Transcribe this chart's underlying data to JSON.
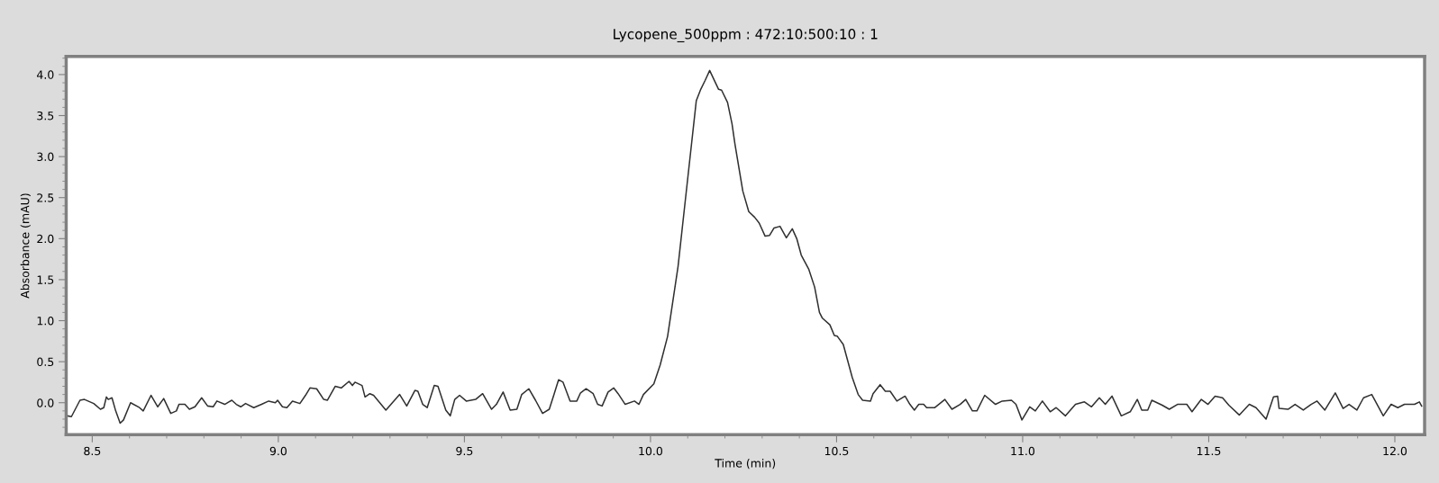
{
  "chart_data": {
    "type": "line",
    "title": "Lycopene_500ppm : 472:10:500:10 : 1",
    "xlabel": "Time (min)",
    "ylabel": "Absorbance (mAU)",
    "xlim": [
      8.43,
      12.08
    ],
    "ylim": [
      -0.39,
      4.22
    ],
    "xticks": [
      8.5,
      {
        "value": 9,
        "label": "9.0"
      },
      9.5,
      {
        "value": 10,
        "label": "10.0"
      },
      10.5,
      {
        "value": 11,
        "label": "11.0"
      },
      11.5,
      {
        "value": 12,
        "label": "12.0"
      }
    ],
    "yticks": [
      {
        "value": 0,
        "label": "0.0"
      },
      0.5,
      {
        "value": 1,
        "label": "1.0"
      },
      1.5,
      {
        "value": 2,
        "label": "2.0"
      },
      2.5,
      {
        "value": 3,
        "label": "3.0"
      },
      3.5,
      {
        "value": 4,
        "label": "4.0"
      }
    ],
    "grid": false,
    "legend": false,
    "marker": "none",
    "line_style": "solid",
    "series": [
      {
        "color": "#303030",
        "x": [
          8.433,
          8.444,
          8.467,
          8.479,
          8.504,
          8.522,
          8.531,
          8.538,
          8.543,
          8.553,
          8.563,
          8.575,
          8.584,
          8.603,
          8.627,
          8.637,
          8.658,
          8.676,
          8.692,
          8.711,
          8.726,
          8.733,
          8.749,
          8.761,
          8.776,
          8.794,
          8.81,
          8.825,
          8.835,
          8.856,
          8.875,
          8.887,
          8.899,
          8.912,
          8.934,
          8.955,
          8.974,
          8.992,
          8.998,
          9.011,
          9.023,
          9.038,
          9.058,
          9.073,
          9.085,
          9.103,
          9.122,
          9.132,
          9.153,
          9.169,
          9.19,
          9.199,
          9.206,
          9.225,
          9.233,
          9.246,
          9.256,
          9.289,
          9.326,
          9.345,
          9.367,
          9.375,
          9.388,
          9.4,
          9.419,
          9.429,
          9.45,
          9.462,
          9.474,
          9.487,
          9.505,
          9.53,
          9.549,
          9.573,
          9.586,
          9.604,
          9.623,
          9.641,
          9.654,
          9.673,
          9.691,
          9.71,
          9.728,
          9.74,
          9.753,
          9.765,
          9.784,
          9.802,
          9.812,
          9.827,
          9.846,
          9.858,
          9.87,
          9.886,
          9.901,
          9.913,
          9.932,
          9.957,
          9.969,
          9.981,
          10.009,
          10.026,
          10.046,
          10.074,
          10.098,
          10.123,
          10.135,
          10.147,
          10.159,
          10.183,
          10.191,
          10.207,
          10.219,
          10.227,
          10.248,
          10.264,
          10.28,
          10.292,
          10.308,
          10.32,
          10.332,
          10.348,
          10.365,
          10.381,
          10.393,
          10.405,
          10.425,
          10.441,
          10.454,
          10.462,
          10.482,
          10.494,
          10.502,
          10.518,
          10.542,
          10.558,
          10.57,
          10.591,
          10.598,
          10.617,
          10.631,
          10.644,
          10.662,
          10.684,
          10.697,
          10.709,
          10.721,
          10.734,
          10.742,
          10.764,
          10.791,
          10.81,
          10.832,
          10.847,
          10.865,
          10.877,
          10.898,
          10.927,
          10.945,
          10.97,
          10.982,
          10.998,
          11.019,
          11.034,
          11.053,
          11.074,
          11.09,
          11.115,
          11.142,
          11.166,
          11.185,
          11.206,
          11.222,
          11.24,
          11.265,
          11.289,
          11.308,
          11.32,
          11.336,
          11.347,
          11.375,
          11.394,
          11.416,
          11.441,
          11.455,
          11.48,
          11.498,
          11.517,
          11.537,
          11.554,
          11.582,
          11.609,
          11.627,
          11.654,
          11.674,
          11.685,
          11.689,
          11.713,
          11.732,
          11.754,
          11.775,
          11.791,
          11.812,
          11.84,
          11.861,
          11.877,
          11.898,
          11.916,
          11.938,
          11.969,
          11.99,
          12.008,
          12.026,
          12.053,
          12.066,
          12.072
        ],
        "values": [
          -0.16,
          -0.17,
          0.03,
          0.04,
          -0.01,
          -0.08,
          -0.06,
          0.07,
          0.04,
          0.06,
          -0.1,
          -0.25,
          -0.21,
          0.0,
          -0.06,
          -0.1,
          0.09,
          -0.05,
          0.05,
          -0.13,
          -0.1,
          -0.02,
          -0.02,
          -0.08,
          -0.05,
          0.06,
          -0.04,
          -0.05,
          0.02,
          -0.02,
          0.03,
          -0.02,
          -0.05,
          -0.01,
          -0.06,
          -0.02,
          0.02,
          0.0,
          0.03,
          -0.05,
          -0.06,
          0.02,
          -0.01,
          0.09,
          0.18,
          0.17,
          0.04,
          0.03,
          0.2,
          0.18,
          0.26,
          0.21,
          0.25,
          0.21,
          0.07,
          0.11,
          0.09,
          -0.09,
          0.1,
          -0.04,
          0.15,
          0.14,
          -0.02,
          -0.06,
          0.21,
          0.2,
          -0.09,
          -0.16,
          0.04,
          0.09,
          0.02,
          0.04,
          0.11,
          -0.08,
          -0.02,
          0.13,
          -0.09,
          -0.08,
          0.1,
          0.17,
          0.03,
          -0.13,
          -0.08,
          0.09,
          0.28,
          0.25,
          0.02,
          0.02,
          0.12,
          0.17,
          0.11,
          -0.02,
          -0.04,
          0.13,
          0.18,
          0.11,
          -0.02,
          0.02,
          -0.02,
          0.1,
          0.23,
          0.46,
          0.81,
          1.66,
          2.65,
          3.68,
          3.82,
          3.93,
          4.05,
          3.82,
          3.81,
          3.66,
          3.4,
          3.15,
          2.58,
          2.33,
          2.26,
          2.19,
          2.03,
          2.04,
          2.13,
          2.15,
          2.01,
          2.12,
          2.0,
          1.8,
          1.63,
          1.41,
          1.1,
          1.03,
          0.95,
          0.82,
          0.81,
          0.71,
          0.31,
          0.1,
          0.03,
          0.02,
          0.11,
          0.22,
          0.14,
          0.14,
          0.02,
          0.08,
          -0.02,
          -0.09,
          -0.02,
          -0.02,
          -0.06,
          -0.06,
          0.04,
          -0.08,
          -0.02,
          0.04,
          -0.1,
          -0.1,
          0.09,
          -0.02,
          0.02,
          0.03,
          -0.02,
          -0.21,
          -0.05,
          -0.1,
          0.02,
          -0.11,
          -0.06,
          -0.16,
          -0.02,
          0.01,
          -0.05,
          0.06,
          -0.02,
          0.08,
          -0.16,
          -0.11,
          0.04,
          -0.09,
          -0.09,
          0.03,
          -0.03,
          -0.08,
          -0.02,
          -0.02,
          -0.11,
          0.04,
          -0.02,
          0.08,
          0.06,
          -0.03,
          -0.15,
          -0.02,
          -0.06,
          -0.2,
          0.07,
          0.08,
          -0.07,
          -0.08,
          -0.02,
          -0.09,
          -0.02,
          0.02,
          -0.09,
          0.12,
          -0.07,
          -0.02,
          -0.09,
          0.06,
          0.1,
          -0.16,
          -0.02,
          -0.06,
          -0.02,
          -0.02,
          0.01,
          -0.04
        ]
      }
    ]
  }
}
